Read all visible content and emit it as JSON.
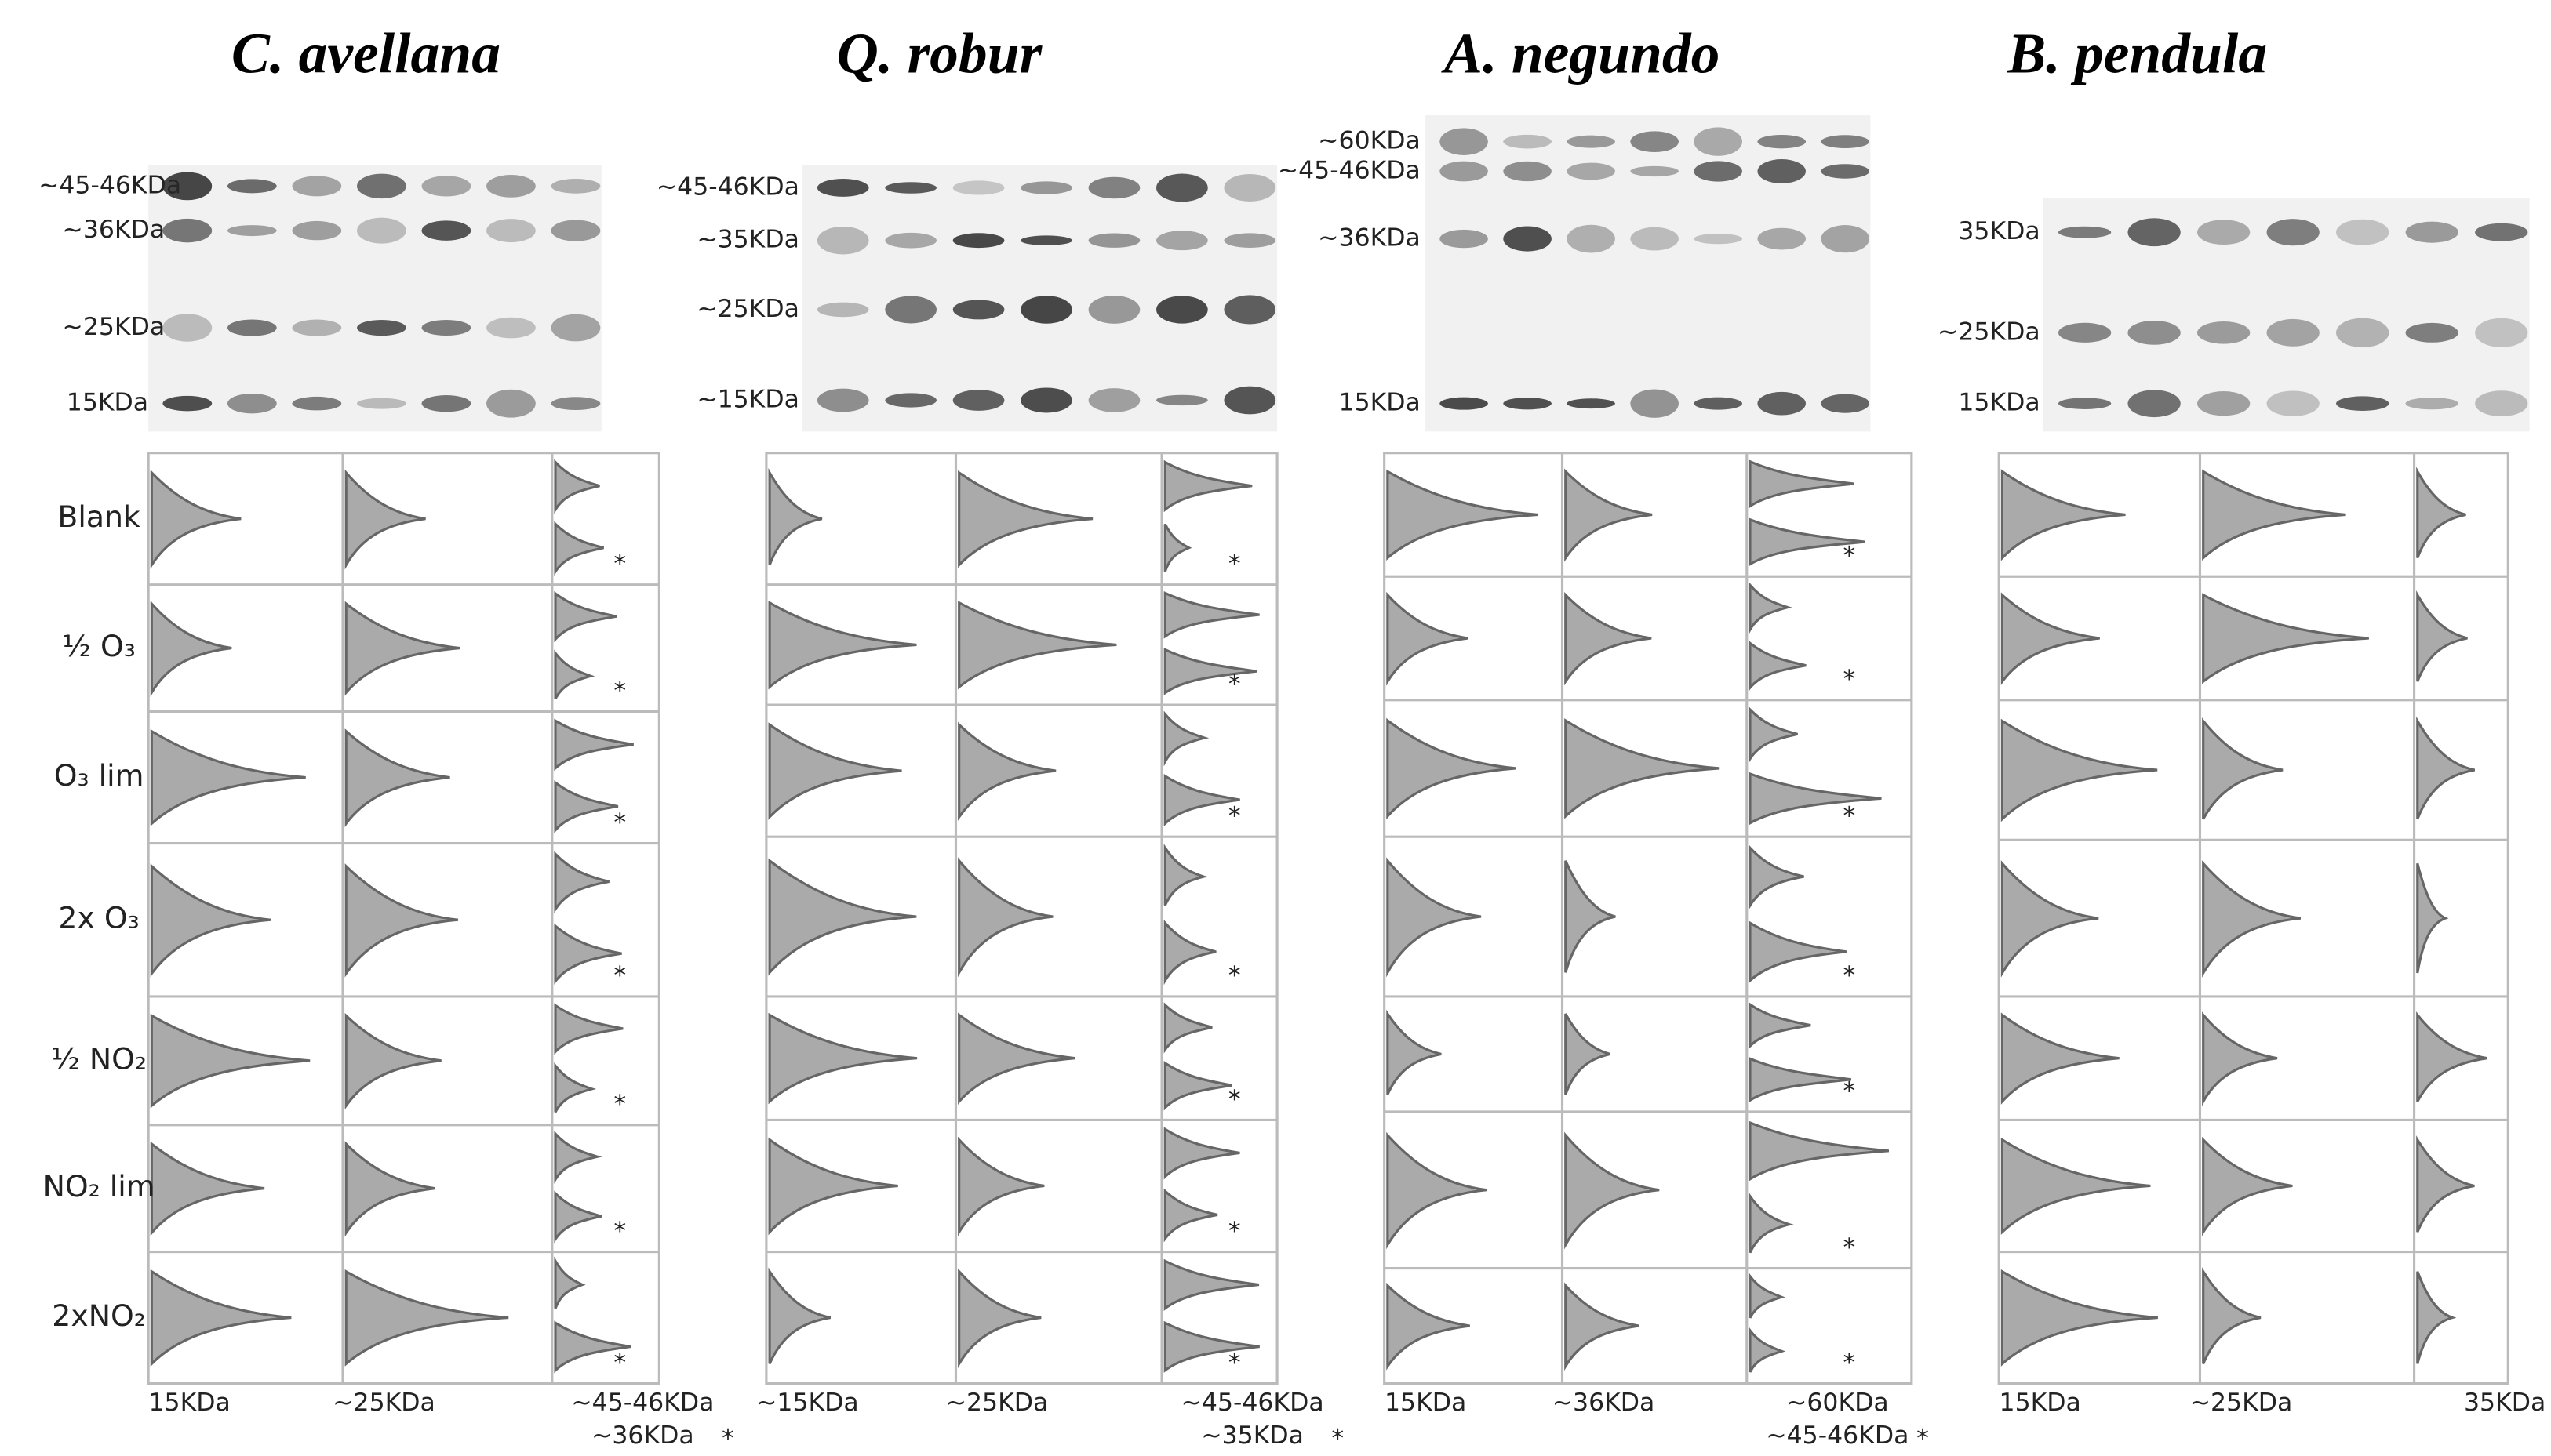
{
  "marker": "*",
  "row_labels": [
    "Blank",
    "½ O₃",
    "O₃ lim",
    "2x O₃",
    "½ NO₂",
    "NO₂ lim",
    "2xNO₂"
  ],
  "panels": [
    {
      "title": "C. avellana",
      "blot_labels": [
        "~45-46KDa",
        "~36KDa",
        "~25KDa",
        "15KDa"
      ],
      "column_labels": [
        "15KDa",
        "~25KDa",
        "~45-46KDa",
        "~36KDa"
      ]
    },
    {
      "title": "Q. robur",
      "blot_labels": [
        "~45-46KDa",
        "~35KDa",
        "~25KDa",
        "~15KDa"
      ],
      "column_labels": [
        "~15KDa",
        "~25KDa",
        "~45-46KDa",
        "~35KDa"
      ]
    },
    {
      "title": "A. negundo",
      "blot_labels": [
        "~60KDa",
        "~45-46KDa",
        "~36KDa",
        "15KDa"
      ],
      "column_labels": [
        "15KDa",
        "~36KDa",
        "~60KDa",
        "~45-46KDa"
      ]
    },
    {
      "title": "B. pendula",
      "blot_labels": [
        "35KDa",
        "~25KDa",
        "15KDa"
      ],
      "column_labels": [
        "15KDa",
        "~25KDa",
        "35KDa"
      ]
    }
  ]
}
